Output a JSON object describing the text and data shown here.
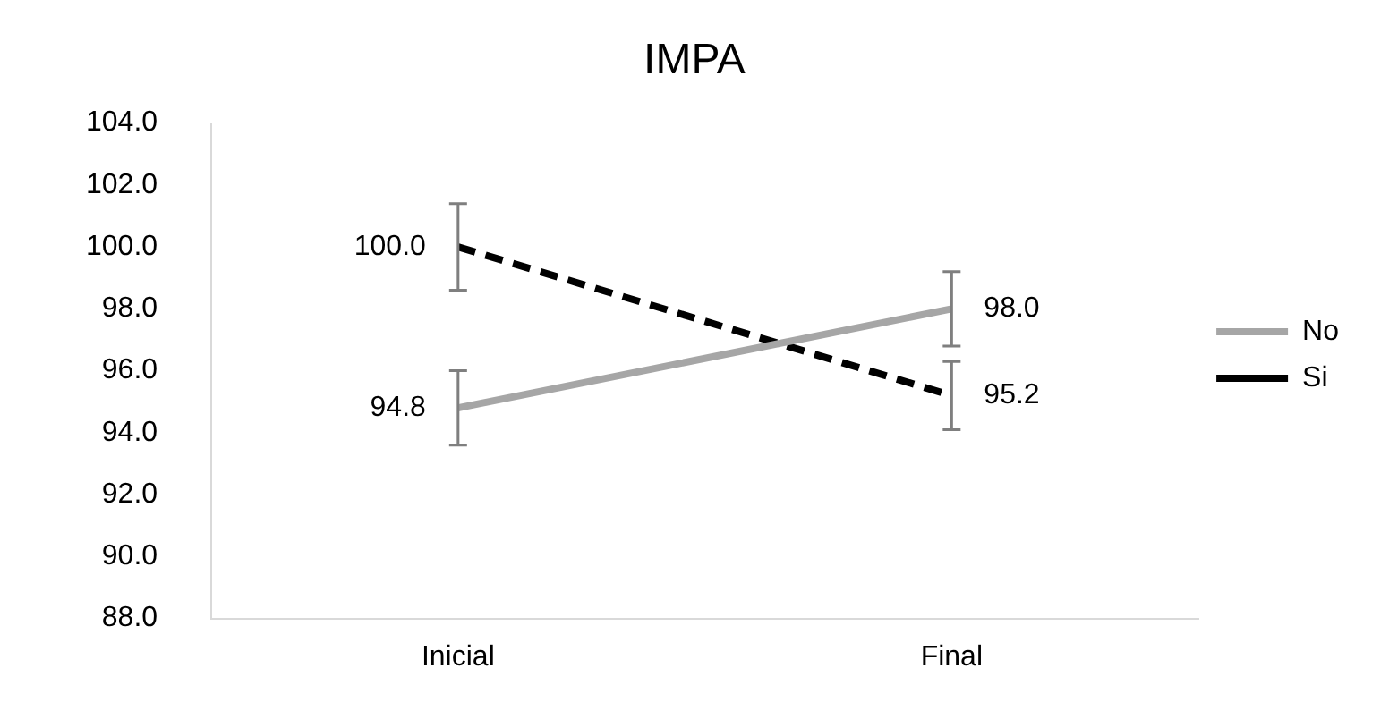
{
  "chart_data": {
    "type": "line",
    "title": "IMPA",
    "categories": [
      "Inicial",
      "Final"
    ],
    "series": [
      {
        "name": "No",
        "color": "#a6a6a6",
        "values": [
          94.8,
          98.0
        ],
        "value_labels": [
          "94.8",
          "98.0"
        ],
        "errors": [
          1.2,
          1.2
        ],
        "line_style": "solid"
      },
      {
        "name": "Si",
        "color": "#000000",
        "values": [
          100.0,
          95.2
        ],
        "value_labels": [
          "100.0",
          "95.2"
        ],
        "errors": [
          1.4,
          1.1
        ],
        "line_style": "dashed"
      }
    ],
    "ylim": [
      88,
      104
    ],
    "yticks": [
      {
        "value": 88,
        "label": "88.0"
      },
      {
        "value": 90,
        "label": "90.0"
      },
      {
        "value": 92,
        "label": "92.0"
      },
      {
        "value": 94,
        "label": "94.0"
      },
      {
        "value": 96,
        "label": "96.0"
      },
      {
        "value": 98,
        "label": "98.0"
      },
      {
        "value": 100,
        "label": "100.0"
      },
      {
        "value": 102,
        "label": "102.0"
      },
      {
        "value": 104,
        "label": "104.0"
      }
    ],
    "grid": false,
    "legend": "right",
    "marker": "none"
  }
}
